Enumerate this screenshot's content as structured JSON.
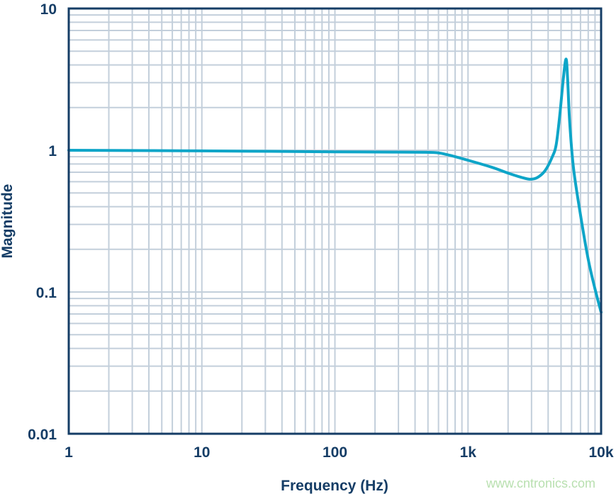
{
  "chart_data": {
    "type": "line",
    "title": "",
    "xlabel": "Frequency (Hz)",
    "ylabel": "Magnitude",
    "xscale": "log",
    "yscale": "log",
    "xlim": [
      1,
      10000
    ],
    "ylim": [
      0.01,
      10
    ],
    "x_tick_labels": [
      "1",
      "10",
      "100",
      "1k",
      "10k"
    ],
    "x_tick_values": [
      1,
      10,
      100,
      1000,
      10000
    ],
    "y_tick_labels": [
      "0.01",
      "0.1",
      "1",
      "10"
    ],
    "y_tick_values": [
      0.01,
      0.1,
      1,
      10
    ],
    "grid": true,
    "legend": "none",
    "series": [
      {
        "color": "#0ea5c8",
        "x": [
          1,
          10,
          100,
          300,
          550,
          700,
          1000,
          1500,
          2000,
          2500,
          2900,
          3300,
          3800,
          4300,
          4600,
          4900,
          5200,
          5450,
          5600,
          5800,
          6200,
          7000,
          8000,
          9000,
          10000
        ],
        "y": [
          1.0,
          0.99,
          0.975,
          0.97,
          0.965,
          0.93,
          0.85,
          0.76,
          0.69,
          0.645,
          0.625,
          0.64,
          0.72,
          0.9,
          1.1,
          1.8,
          3.2,
          4.4,
          3.2,
          1.6,
          0.75,
          0.35,
          0.17,
          0.105,
          0.072
        ]
      }
    ],
    "colors": {
      "axis": "#153d66",
      "grid": "#c3cfdb",
      "line": "#0ea5c8"
    }
  },
  "watermark": "www.cntronics.com"
}
